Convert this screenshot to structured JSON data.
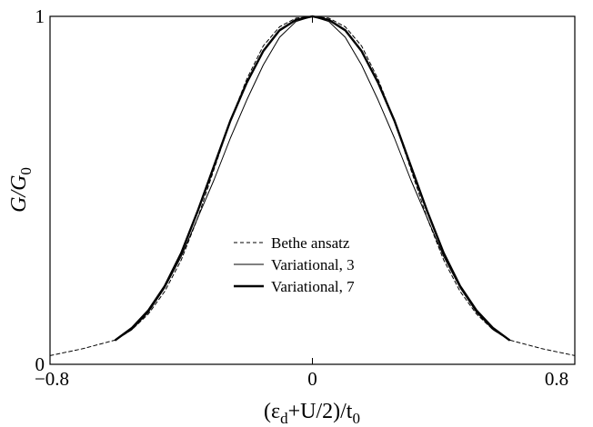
{
  "chart_data": {
    "type": "line",
    "xlabel": {
      "prefix": "(ε",
      "sub1": "d",
      "mid": "+U/2)/t",
      "sub2": "0"
    },
    "ylabel": {
      "main": "G/G",
      "sub": "0"
    },
    "xlim": [
      -0.8,
      0.8
    ],
    "ylim": [
      0,
      1
    ],
    "x_ticks": [
      -0.8,
      0,
      0.8
    ],
    "x_tick_labels": [
      "−0.8",
      "0",
      "0.8"
    ],
    "y_ticks": [
      0,
      1
    ],
    "y_tick_labels": [
      "0",
      "1"
    ],
    "grid": false,
    "legend_position": "center",
    "series": [
      {
        "name": "Bethe ansatz",
        "style": "dashed",
        "color": "#000000",
        "x": [
          -0.8,
          -0.7,
          -0.6,
          -0.55,
          -0.5,
          -0.45,
          -0.4,
          -0.35,
          -0.3,
          -0.25,
          -0.2,
          -0.15,
          -0.1,
          -0.05,
          0,
          0.05,
          0.1,
          0.15,
          0.2,
          0.25,
          0.3,
          0.35,
          0.4,
          0.45,
          0.5,
          0.55,
          0.6,
          0.7,
          0.8
        ],
        "y": [
          0.025,
          0.045,
          0.07,
          0.1,
          0.145,
          0.21,
          0.3,
          0.42,
          0.56,
          0.7,
          0.82,
          0.915,
          0.97,
          0.995,
          1.0,
          0.995,
          0.97,
          0.915,
          0.82,
          0.7,
          0.56,
          0.42,
          0.3,
          0.21,
          0.145,
          0.1,
          0.07,
          0.045,
          0.025
        ]
      },
      {
        "name": "Variational, 3",
        "style": "thin",
        "color": "#000000",
        "x": [
          -0.6,
          -0.55,
          -0.5,
          -0.45,
          -0.4,
          -0.35,
          -0.3,
          -0.25,
          -0.2,
          -0.15,
          -0.1,
          -0.05,
          0,
          0.05,
          0.1,
          0.15,
          0.2,
          0.25,
          0.3,
          0.35,
          0.4,
          0.45,
          0.5,
          0.55,
          0.6
        ],
        "y": [
          0.07,
          0.1,
          0.15,
          0.22,
          0.31,
          0.42,
          0.53,
          0.65,
          0.76,
          0.86,
          0.94,
          0.985,
          1.0,
          0.985,
          0.94,
          0.86,
          0.76,
          0.65,
          0.53,
          0.42,
          0.31,
          0.22,
          0.15,
          0.1,
          0.07
        ]
      },
      {
        "name": "Variational, 7",
        "style": "thick",
        "color": "#000000",
        "x": [
          -0.6,
          -0.55,
          -0.5,
          -0.45,
          -0.4,
          -0.35,
          -0.3,
          -0.25,
          -0.2,
          -0.15,
          -0.1,
          -0.05,
          0,
          0.05,
          0.1,
          0.15,
          0.2,
          0.25,
          0.3,
          0.35,
          0.4,
          0.45,
          0.5,
          0.55,
          0.6
        ],
        "y": [
          0.07,
          0.105,
          0.155,
          0.225,
          0.32,
          0.44,
          0.57,
          0.7,
          0.81,
          0.9,
          0.96,
          0.99,
          1.0,
          0.99,
          0.96,
          0.9,
          0.81,
          0.7,
          0.57,
          0.44,
          0.32,
          0.225,
          0.155,
          0.105,
          0.07
        ]
      }
    ]
  }
}
